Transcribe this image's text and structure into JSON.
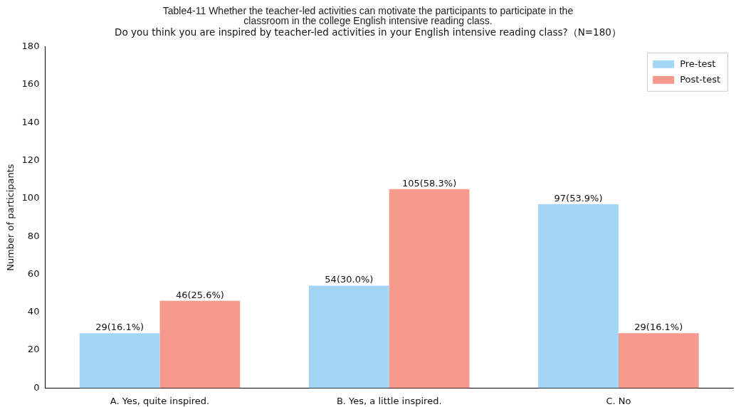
{
  "chart_data": {
    "type": "bar",
    "title": "Table4-11 Whether the teacher-led activities can motivate the participants to participate in the classroom in the college English intensive reading class.",
    "subtitle": "Do you think you are inspired by teacher-led activities in your English intensive reading class?（N=180）",
    "ylabel": "Number of participants",
    "categories": [
      "A. Yes, quite inspired.",
      "B. Yes, a little inspired.",
      "C. No"
    ],
    "series": [
      {
        "name": "Pre-test",
        "color": "#a3d5f5",
        "values": [
          29,
          54,
          97
        ],
        "value_labels": [
          "29(16.1%)",
          "54(30.0%)",
          "97(53.9%)"
        ]
      },
      {
        "name": "Post-test",
        "color": "#f59a8c",
        "values": [
          46,
          105,
          29
        ],
        "value_labels": [
          "46(25.6%)",
          "105(58.3%)",
          "29(16.1%)"
        ]
      }
    ],
    "ylim": [
      0,
      180
    ],
    "yticks": [
      0,
      20,
      40,
      60,
      80,
      100,
      120,
      140,
      160,
      180
    ],
    "legend": "top right"
  }
}
